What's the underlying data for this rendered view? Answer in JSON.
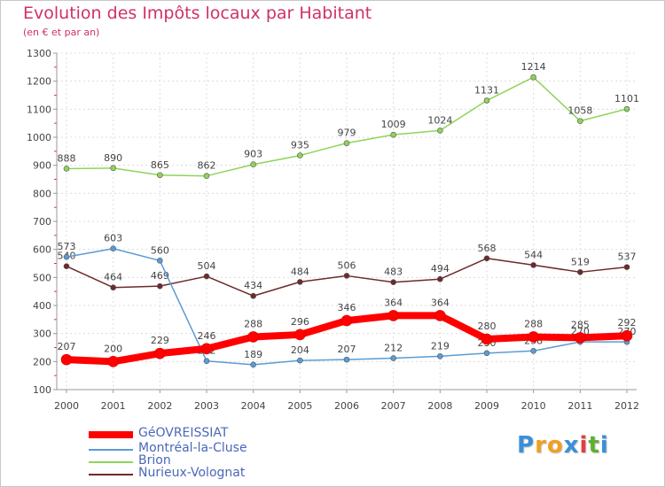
{
  "title": "Evolution des Impôts locaux par Habitant",
  "subtitle": "(en € et par an)",
  "logo": {
    "text": [
      "P",
      "r",
      "o",
      "x",
      "i",
      "t",
      "i"
    ],
    "colors": [
      "#3a8fd8",
      "#f0a020",
      "#f0a020",
      "#3a8fd8",
      "#e04040",
      "#60b030",
      "#3a8fd8"
    ]
  },
  "chart_data": {
    "type": "line",
    "x": [
      "2000",
      "2001",
      "2002",
      "2003",
      "2004",
      "2005",
      "2006",
      "2007",
      "2008",
      "2009",
      "2010",
      "2011",
      "2012"
    ],
    "ylim": [
      100,
      1300
    ],
    "yticks": [
      "100",
      "200",
      "300",
      "400",
      "500",
      "600",
      "700",
      "800",
      "900",
      "1000",
      "1100",
      "1200",
      "1300"
    ],
    "grid": true,
    "legend_position": "bottom-left",
    "series": [
      {
        "name": "Brion",
        "color": "#8ed45a",
        "stroke": 1.5,
        "marker": 3,
        "values": [
          888,
          890,
          865,
          862,
          903,
          935,
          979,
          1009,
          1024,
          1131,
          1214,
          1058,
          1101
        ],
        "labels": [
          "888",
          "890",
          "865",
          "862",
          "903",
          "935",
          "979",
          "1009",
          "1024",
          "1131",
          "1214",
          "1058",
          "1101"
        ]
      },
      {
        "name": "Nurieux-Volognat",
        "color": "#6e2a2a",
        "stroke": 1.5,
        "marker": 3,
        "values": [
          540,
          464,
          469,
          504,
          434,
          484,
          506,
          483,
          494,
          568,
          544,
          519,
          537
        ],
        "labels": [
          "540",
          "464",
          "469",
          "504",
          "434",
          "484",
          "506",
          "483",
          "494",
          "568",
          "544",
          "519",
          "537"
        ]
      },
      {
        "name": "Montréal-la-Cluse",
        "color": "#5b9bd5",
        "stroke": 1.5,
        "marker": 3,
        "values": [
          573,
          603,
          560,
          202,
          189,
          204,
          207,
          212,
          219,
          230,
          238,
          270,
          270
        ],
        "labels": [
          "573",
          "603",
          "560",
          "202",
          "189",
          "204",
          "207",
          "212",
          "219",
          "230",
          "238",
          "270",
          "270"
        ]
      },
      {
        "name": "GéOVREISSIAT",
        "color": "#ff0000",
        "stroke": 8,
        "marker": 6,
        "values": [
          207,
          200,
          229,
          246,
          288,
          296,
          346,
          364,
          364,
          280,
          288,
          285,
          292
        ],
        "labels": [
          "207",
          "200",
          "229",
          "246",
          "288",
          "296",
          "346",
          "364",
          "364",
          "280",
          "288",
          "285",
          "292"
        ]
      }
    ],
    "legend": [
      "GéOVREISSIAT",
      "Montréal-la-Cluse",
      "Brion",
      "Nurieux-Volognat"
    ]
  }
}
